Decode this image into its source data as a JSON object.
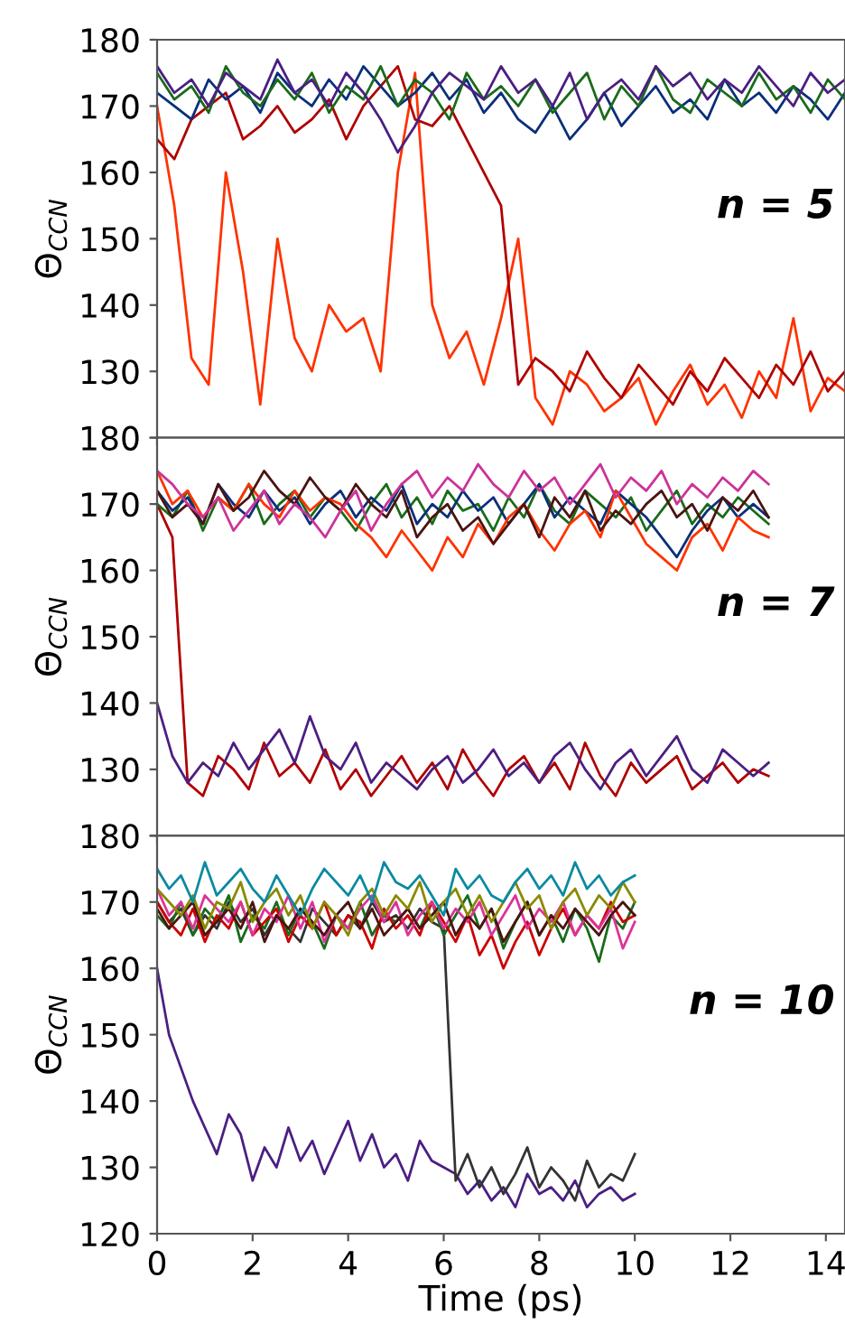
{
  "chart_data": [
    {
      "type": "line",
      "ylabel": "Θ$_{CCN}$",
      "annotations": [
        "n = 5"
      ],
      "xlim": [
        0,
        14.4
      ],
      "xticks": [
        0,
        2,
        4,
        6,
        8,
        10,
        12,
        14
      ],
      "ylim": [
        120,
        180
      ],
      "yticks": [
        {
          "value": 120,
          "label": null
        },
        130,
        140,
        150,
        160,
        170,
        180
      ],
      "tick_labels": "y",
      "grid": false,
      "legend": false,
      "x": [
        0,
        0.36,
        0.72,
        1.08,
        1.44,
        1.8,
        2.16,
        2.52,
        2.88,
        3.24,
        3.6,
        3.96,
        4.32,
        4.68,
        5.04,
        5.4,
        5.76,
        6.12,
        6.48,
        6.84,
        7.2,
        7.56,
        7.92,
        8.28,
        8.64,
        9.0,
        9.36,
        9.72,
        10.08,
        10.44,
        10.8,
        11.16,
        11.52,
        11.88,
        12.24,
        12.6,
        12.96,
        13.32,
        13.68,
        14.04,
        14.4
      ],
      "series": [
        {
          "color": "#ff3300",
          "values": [
            170,
            155,
            132,
            128,
            160,
            145,
            125,
            150,
            135,
            130,
            140,
            136,
            138,
            130,
            160,
            175,
            140,
            132,
            136,
            128,
            138,
            150,
            126,
            122,
            130,
            128,
            124,
            126,
            129,
            122,
            127,
            131,
            125,
            128,
            123,
            130,
            126,
            138,
            124,
            129,
            127
          ]
        },
        {
          "color": "#b00000",
          "values": [
            165,
            162,
            168,
            170,
            172,
            165,
            167,
            170,
            166,
            168,
            171,
            165,
            170,
            173,
            176,
            168,
            167,
            170,
            165,
            160,
            155,
            128,
            132,
            130,
            127,
            133,
            129,
            126,
            131,
            128,
            125,
            130,
            127,
            132,
            129,
            126,
            131,
            128,
            133,
            127,
            130
          ]
        },
        {
          "color": "#0a2f7a",
          "values": [
            172,
            170,
            168,
            174,
            171,
            173,
            169,
            175,
            172,
            170,
            174,
            171,
            176,
            173,
            170,
            172,
            175,
            171,
            174,
            169,
            172,
            168,
            166,
            170,
            165,
            168,
            172,
            167,
            170,
            173,
            169,
            171,
            168,
            174,
            170,
            172,
            169,
            173,
            171,
            168,
            172
          ]
        },
        {
          "color": "#1a6b1a",
          "values": [
            175,
            171,
            173,
            169,
            176,
            172,
            170,
            174,
            171,
            175,
            169,
            173,
            171,
            176,
            170,
            174,
            172,
            168,
            175,
            171,
            173,
            170,
            174,
            169,
            172,
            175,
            168,
            173,
            170,
            176,
            171,
            169,
            174,
            172,
            170,
            175,
            171,
            173,
            169,
            174,
            171
          ]
        },
        {
          "color": "#4b1f82",
          "values": [
            176,
            172,
            174,
            170,
            175,
            173,
            171,
            177,
            172,
            174,
            170,
            175,
            172,
            168,
            163,
            167,
            172,
            175,
            173,
            171,
            176,
            172,
            174,
            170,
            175,
            168,
            172,
            174,
            171,
            176,
            173,
            175,
            171,
            174,
            172,
            176,
            173,
            170,
            175,
            172,
            174
          ]
        }
      ]
    },
    {
      "type": "line",
      "ylabel": "Θ$_{CCN}$",
      "annotations": [
        "n = 7"
      ],
      "xlim": [
        0,
        14.4
      ],
      "xticks": [
        0,
        2,
        4,
        6,
        8,
        10,
        12,
        14
      ],
      "ylim": [
        120,
        180
      ],
      "yticks": [
        {
          "value": 120,
          "label": null
        },
        130,
        140,
        150,
        160,
        170,
        180
      ],
      "tick_labels": "y",
      "grid": false,
      "legend": false,
      "x": [
        0,
        0.32,
        0.64,
        0.96,
        1.28,
        1.6,
        1.92,
        2.24,
        2.56,
        2.88,
        3.2,
        3.52,
        3.84,
        4.16,
        4.48,
        4.8,
        5.12,
        5.44,
        5.76,
        6.08,
        6.4,
        6.72,
        7.04,
        7.36,
        7.68,
        8.0,
        8.32,
        8.64,
        8.96,
        9.28,
        9.6,
        9.92,
        10.24,
        10.56,
        10.88,
        11.2,
        11.52,
        11.84,
        12.16,
        12.48,
        12.8
      ],
      "series": [
        {
          "color": "#b00000",
          "values": [
            170,
            165,
            128,
            126,
            132,
            130,
            127,
            134,
            129,
            131,
            128,
            133,
            127,
            130,
            126,
            129,
            132,
            128,
            131,
            127,
            133,
            129,
            126,
            130,
            132,
            128,
            131,
            127,
            134,
            129,
            126,
            131,
            128,
            130,
            132,
            127,
            129,
            131,
            128,
            130,
            129
          ]
        },
        {
          "color": "#4b1f82",
          "values": [
            140,
            132,
            128,
            131,
            129,
            134,
            130,
            133,
            136,
            131,
            138,
            132,
            130,
            134,
            128,
            131,
            129,
            127,
            130,
            132,
            128,
            130,
            133,
            129,
            131,
            128,
            132,
            134,
            130,
            127,
            131,
            133,
            129,
            132,
            135,
            130,
            128,
            133,
            131,
            129,
            131
          ]
        },
        {
          "color": "#1a6b1a",
          "values": [
            170,
            168,
            172,
            166,
            171,
            169,
            173,
            167,
            170,
            172,
            168,
            171,
            169,
            166,
            170,
            173,
            168,
            171,
            167,
            172,
            169,
            170,
            166,
            171,
            168,
            173,
            169,
            167,
            172,
            170,
            168,
            171,
            166,
            169,
            172,
            167,
            170,
            168,
            171,
            169,
            167
          ]
        },
        {
          "color": "#0a2f7a",
          "values": [
            172,
            169,
            171,
            167,
            173,
            170,
            168,
            172,
            169,
            171,
            167,
            170,
            172,
            168,
            171,
            169,
            173,
            167,
            170,
            168,
            172,
            169,
            171,
            167,
            170,
            173,
            168,
            171,
            169,
            167,
            172,
            170,
            168,
            165,
            162,
            166,
            169,
            171,
            168,
            170,
            168
          ]
        },
        {
          "color": "#ff3300",
          "values": [
            175,
            170,
            172,
            168,
            171,
            169,
            173,
            170,
            168,
            172,
            169,
            171,
            170,
            167,
            165,
            162,
            166,
            163,
            160,
            165,
            162,
            167,
            164,
            168,
            170,
            166,
            163,
            167,
            169,
            165,
            172,
            168,
            164,
            162,
            160,
            165,
            167,
            163,
            168,
            166,
            165
          ]
        },
        {
          "color": "#4a1410",
          "values": [
            172,
            168,
            170,
            167,
            173,
            169,
            171,
            175,
            172,
            170,
            174,
            171,
            169,
            173,
            170,
            168,
            172,
            165,
            168,
            170,
            166,
            168,
            164,
            167,
            170,
            165,
            171,
            168,
            172,
            166,
            169,
            167,
            170,
            172,
            168,
            170,
            166,
            171,
            169,
            172,
            168
          ]
        },
        {
          "color": "#cc3399",
          "values": [
            175,
            173,
            170,
            168,
            171,
            166,
            169,
            172,
            167,
            170,
            168,
            165,
            169,
            172,
            166,
            170,
            173,
            175,
            171,
            174,
            172,
            176,
            173,
            171,
            175,
            172,
            174,
            170,
            173,
            176,
            171,
            174,
            172,
            175,
            170,
            173,
            171,
            174,
            172,
            175,
            173
          ]
        }
      ]
    },
    {
      "type": "line",
      "xlabel": "Time (ps)",
      "ylabel": "Θ$_{CCN}$",
      "annotations": [
        "n = 10"
      ],
      "xlim": [
        0,
        14.4
      ],
      "xticks": [
        0,
        2,
        4,
        6,
        8,
        10,
        12,
        14
      ],
      "ylim": [
        120,
        180
      ],
      "yticks": [
        120,
        130,
        140,
        150,
        160,
        170,
        180
      ],
      "grid": false,
      "legend": false,
      "x": [
        0,
        0.25,
        0.5,
        0.75,
        1.0,
        1.25,
        1.5,
        1.75,
        2.0,
        2.25,
        2.5,
        2.75,
        3.0,
        3.25,
        3.5,
        3.75,
        4.0,
        4.25,
        4.5,
        4.75,
        5.0,
        5.25,
        5.5,
        5.75,
        6.0,
        6.25,
        6.5,
        6.75,
        7.0,
        7.25,
        7.5,
        7.75,
        8.0,
        8.25,
        8.5,
        8.75,
        9.0,
        9.25,
        9.5,
        9.75,
        10.0
      ],
      "series": [
        {
          "color": "#4b1f82",
          "values": [
            160,
            150,
            145,
            140,
            136,
            132,
            138,
            135,
            128,
            133,
            130,
            136,
            131,
            134,
            129,
            133,
            137,
            131,
            135,
            130,
            132,
            128,
            134,
            131,
            130,
            129,
            126,
            128,
            125,
            127,
            124,
            129,
            126,
            127,
            125,
            128,
            124,
            126,
            127,
            125,
            126
          ]
        },
        {
          "color": "#333333",
          "values": [
            170,
            167,
            169,
            165,
            168,
            166,
            170,
            167,
            169,
            165,
            168,
            166,
            164,
            169,
            167,
            165,
            168,
            166,
            170,
            167,
            168,
            166,
            169,
            167,
            166,
            128,
            132,
            127,
            130,
            126,
            129,
            133,
            127,
            130,
            128,
            125,
            131,
            127,
            129,
            128,
            132
          ]
        },
        {
          "color": "#1a6b1a",
          "values": [
            168,
            166,
            170,
            165,
            169,
            167,
            171,
            164,
            168,
            166,
            170,
            165,
            169,
            167,
            163,
            168,
            166,
            170,
            165,
            168,
            167,
            169,
            166,
            170,
            165,
            168,
            171,
            166,
            169,
            163,
            167,
            170,
            165,
            168,
            164,
            169,
            166,
            161,
            168,
            166,
            170
          ]
        },
        {
          "color": "#cc0000",
          "values": [
            170,
            167,
            165,
            169,
            164,
            168,
            166,
            170,
            165,
            167,
            169,
            164,
            168,
            166,
            170,
            165,
            168,
            167,
            163,
            169,
            166,
            168,
            165,
            170,
            167,
            164,
            168,
            162,
            165,
            160,
            164,
            167,
            162,
            166,
            169,
            165,
            168,
            166,
            170,
            167,
            168
          ]
        },
        {
          "color": "#dd3399",
          "values": [
            172,
            168,
            170,
            166,
            171,
            169,
            167,
            170,
            165,
            169,
            167,
            171,
            166,
            170,
            164,
            168,
            166,
            169,
            171,
            167,
            170,
            165,
            168,
            170,
            166,
            169,
            167,
            170,
            165,
            168,
            171,
            166,
            169,
            167,
            170,
            165,
            168,
            166,
            169,
            163,
            167
          ]
        },
        {
          "color": "#4a1410",
          "values": [
            169,
            166,
            168,
            170,
            165,
            167,
            169,
            166,
            170,
            164,
            168,
            166,
            169,
            167,
            165,
            168,
            170,
            166,
            169,
            165,
            167,
            169,
            166,
            168,
            170,
            165,
            168,
            166,
            169,
            164,
            167,
            170,
            165,
            168,
            166,
            169,
            167,
            165,
            168,
            170,
            168
          ]
        },
        {
          "color": "#8a8a00",
          "values": [
            172,
            170,
            168,
            171,
            166,
            170,
            169,
            173,
            167,
            170,
            172,
            168,
            171,
            166,
            170,
            168,
            165,
            170,
            172,
            168,
            171,
            169,
            173,
            167,
            170,
            172,
            168,
            171,
            167,
            170,
            173,
            169,
            171,
            166,
            170,
            172,
            168,
            171,
            169,
            173,
            170
          ]
        },
        {
          "color": "#0a8aa0",
          "values": [
            175,
            172,
            174,
            170,
            176,
            171,
            173,
            175,
            172,
            170,
            174,
            171,
            168,
            172,
            175,
            173,
            171,
            174,
            170,
            176,
            173,
            172,
            174,
            171,
            168,
            175,
            172,
            174,
            171,
            170,
            173,
            175,
            172,
            174,
            171,
            176,
            172,
            174,
            171,
            173,
            174
          ]
        }
      ]
    }
  ]
}
